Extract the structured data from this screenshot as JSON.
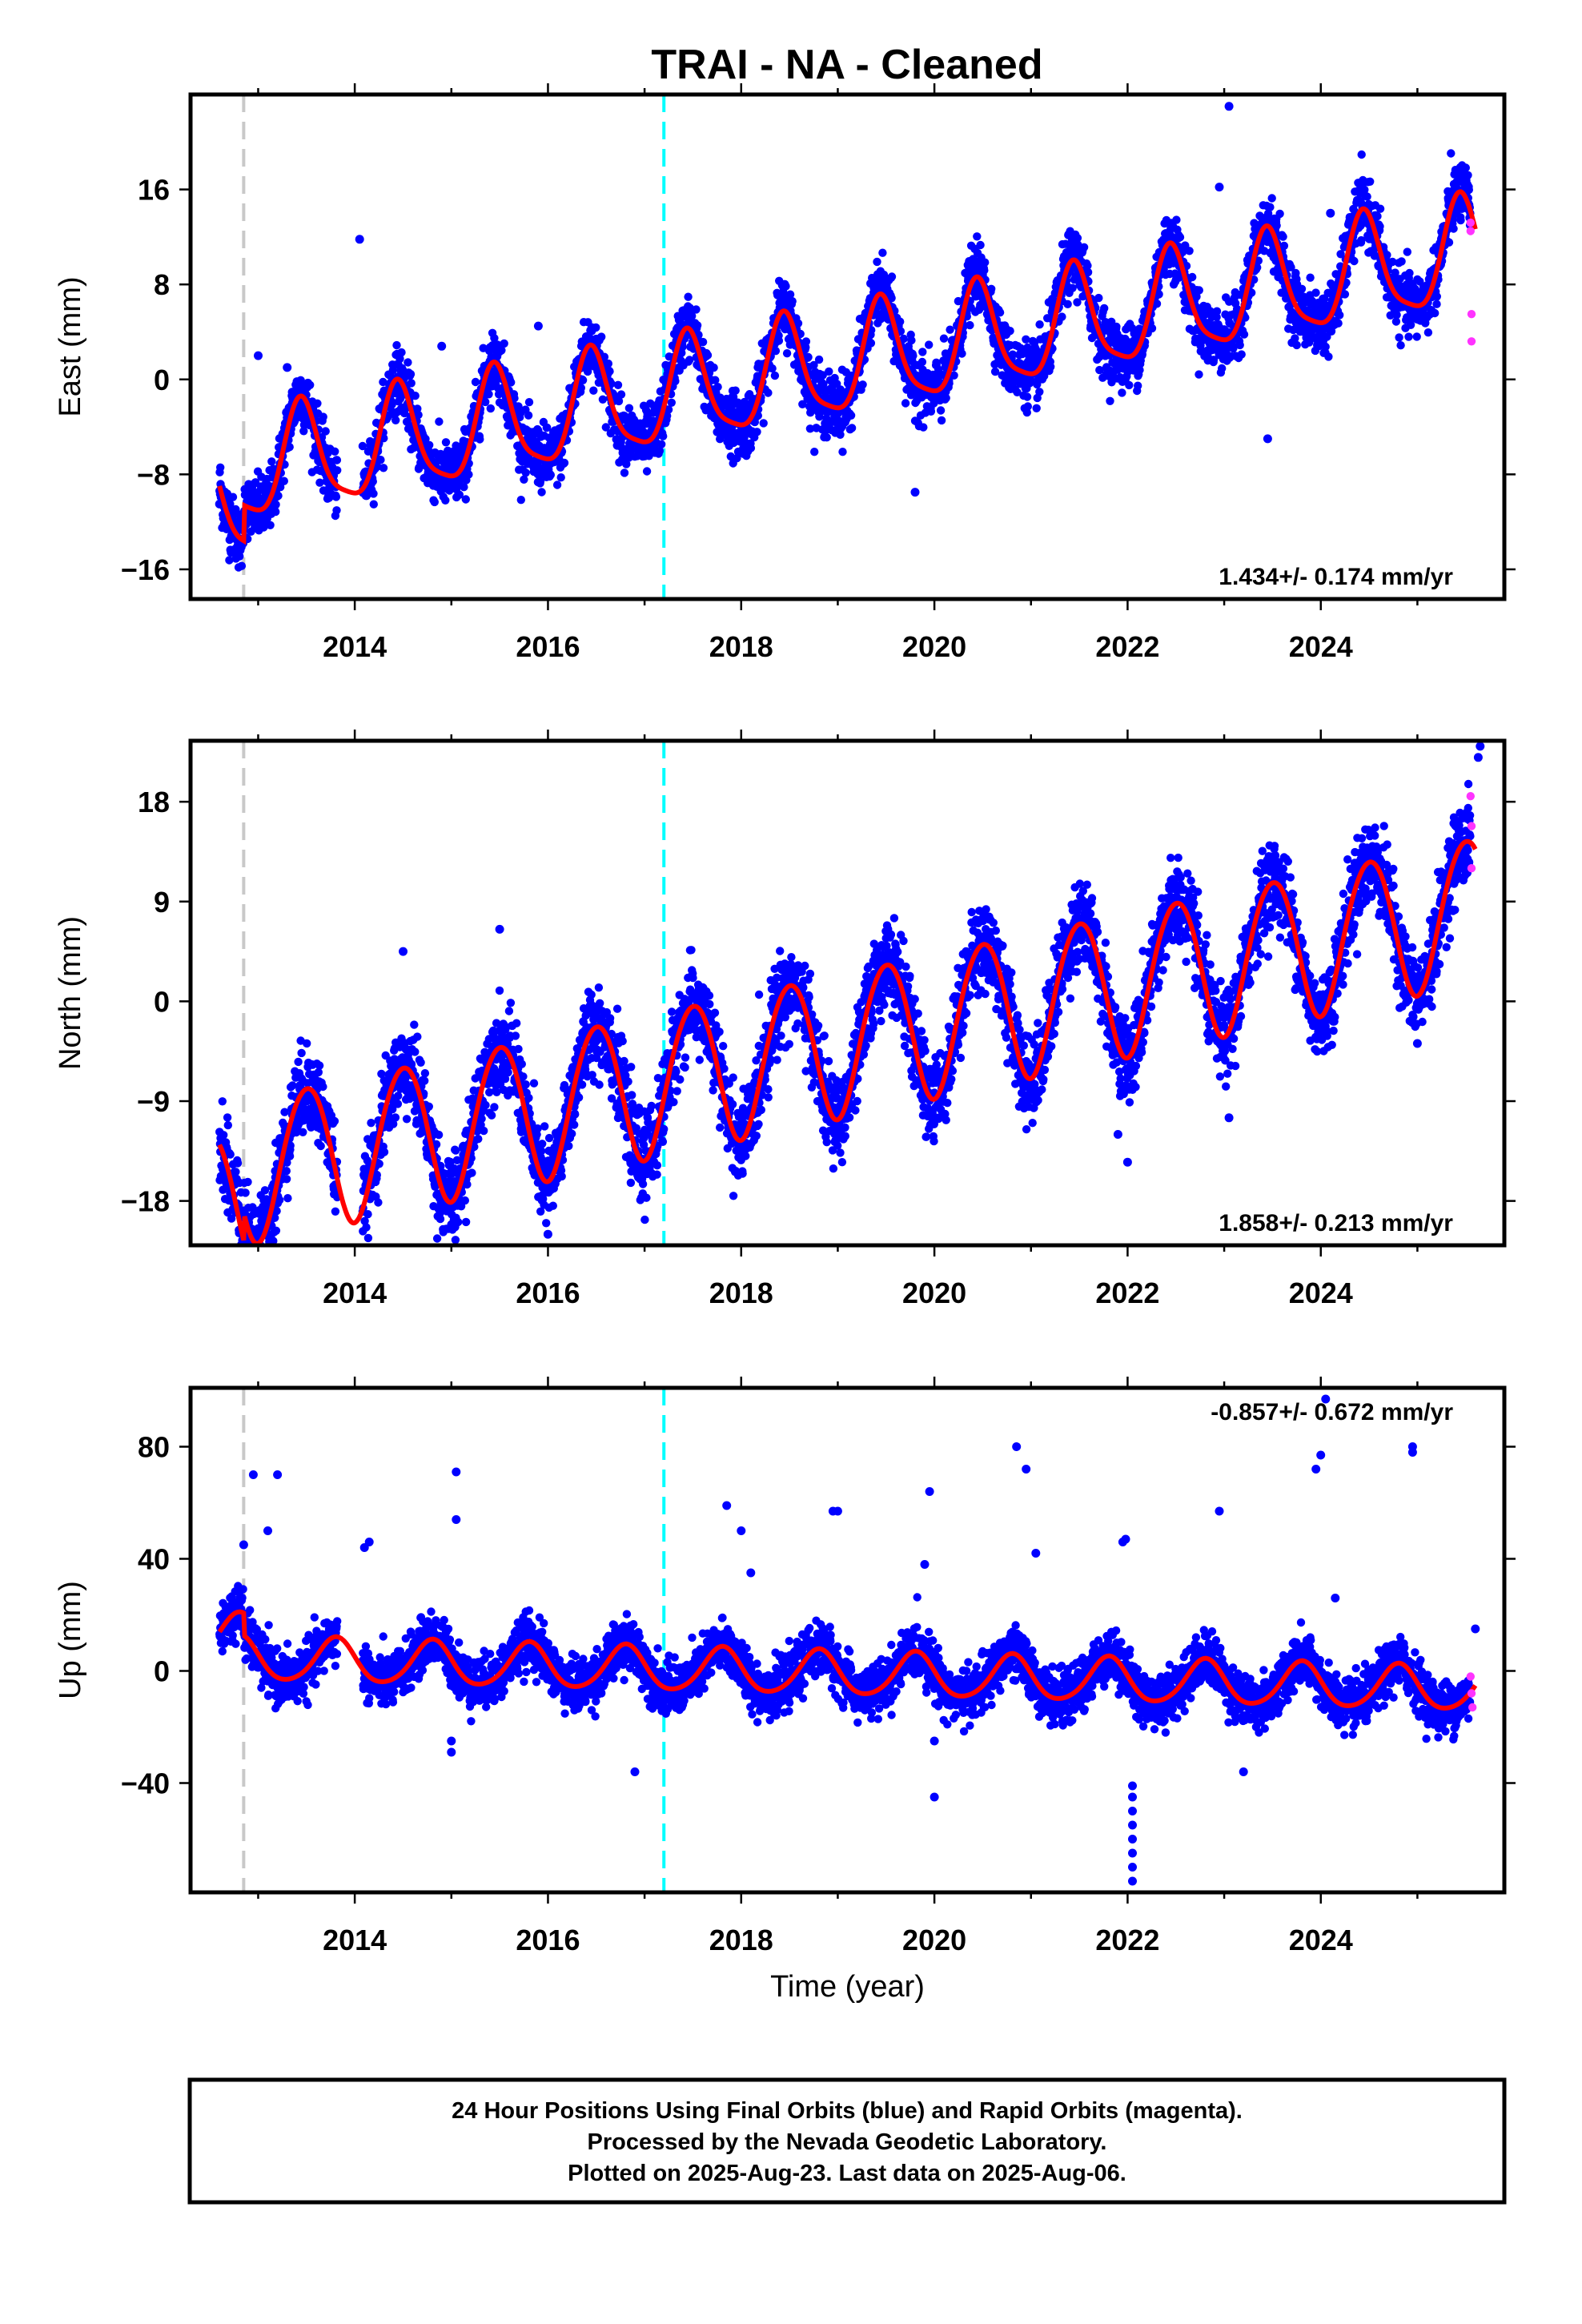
{
  "title": "TRAI  - NA - Cleaned",
  "footer": {
    "line1": "24 Hour Positions Using Final Orbits (blue) and Rapid Orbits (magenta).",
    "line2": "Processed by the Nevada Geodetic Laboratory.",
    "line3": "Plotted on 2025-Aug-23. Last data on 2025-Aug-06."
  },
  "colors": {
    "final_orbits": "#0000ff",
    "rapid_orbits": "#ff33ff",
    "model_fit": "#ff0000",
    "equipment_change": "#c8c8c8",
    "event_line": "#00ffff"
  },
  "chart_data": [
    {
      "type": "scatter",
      "component": "east",
      "ylabel": "East (mm)",
      "xlabel": "",
      "xlim": [
        2012.3,
        2025.9
      ],
      "ylim": [
        -18.5,
        24
      ],
      "yticks": [
        -16,
        -8,
        0,
        8,
        16
      ],
      "xticks": [
        2014,
        2016,
        2018,
        2020,
        2022,
        2024
      ],
      "rate_text": "1.434+/- 0.174 mm/yr",
      "rate_position": "bottom-right",
      "vertical_lines": [
        {
          "x": 2012.85,
          "style": "dashed",
          "color": "#c8c8c8"
        },
        {
          "x": 2017.2,
          "style": "dashed",
          "color": "#00ffff"
        }
      ],
      "model_fit": {
        "start": 2012.6,
        "end": 2025.6,
        "ref_year": 2019,
        "intercept": 1.2,
        "rate": 1.434,
        "annual_amp": 4.4,
        "annual_phase": 0.2,
        "semiannual_amp": 1.0,
        "semiannual_phase": 0.3,
        "initial_offset": -3.0
      },
      "scatter": {
        "noise": 1.3,
        "gaps": [
          [
            2013.82,
            2014.08
          ]
        ]
      },
      "outliers": [
        [
          2014.05,
          11.8
        ],
        [
          2013.0,
          2.0
        ],
        [
          2013.3,
          1.0
        ],
        [
          2022.95,
          16.2
        ],
        [
          2023.05,
          23.0
        ],
        [
          2024.1,
          14.0
        ],
        [
          2019.8,
          -9.5
        ],
        [
          2023.45,
          -5.0
        ],
        [
          2014.9,
          2.8
        ],
        [
          2015.9,
          4.5
        ],
        [
          2012.6,
          -10.5
        ]
      ],
      "rapid_points": [
        [
          2025.55,
          13.2
        ],
        [
          2025.55,
          12.5
        ],
        [
          2025.56,
          5.5
        ],
        [
          2025.56,
          3.2
        ]
      ]
    },
    {
      "type": "scatter",
      "component": "north",
      "ylabel": "North (mm)",
      "xlabel": "",
      "xlim": [
        2012.3,
        2025.9
      ],
      "ylim": [
        -22,
        23.5
      ],
      "yticks": [
        -18,
        -9,
        0,
        9,
        18
      ],
      "xticks": [
        2014,
        2016,
        2018,
        2020,
        2022,
        2024
      ],
      "rate_text": "1.858+/- 0.213 mm/yr",
      "rate_position": "bottom-right",
      "vertical_lines": [
        {
          "x": 2012.85,
          "style": "dashed",
          "color": "#c8c8c8"
        },
        {
          "x": 2017.2,
          "style": "dashed",
          "color": "#00ffff"
        }
      ],
      "model_fit": {
        "start": 2012.6,
        "end": 2025.6,
        "ref_year": 2019,
        "intercept": -3.8,
        "rate": 1.858,
        "annual_amp": 6.5,
        "annual_phase": 0.25,
        "semiannual_amp": 0.4,
        "semiannual_phase": 0.1,
        "initial_offset": -2.5
      },
      "scatter": {
        "noise": 1.9,
        "gaps": [
          [
            2013.82,
            2014.08
          ]
        ]
      },
      "outliers": [
        [
          2022.0,
          -14.5
        ],
        [
          2021.9,
          -12.0
        ],
        [
          2023.05,
          -10.5
        ],
        [
          2025.0,
          -3.8
        ],
        [
          2016.0,
          -21.0
        ],
        [
          2013.0,
          -20.5
        ],
        [
          2015.5,
          6.5
        ],
        [
          2014.5,
          4.5
        ],
        [
          2025.65,
          23.0
        ],
        [
          2025.63,
          22.0
        ]
      ],
      "rapid_points": [
        [
          2025.55,
          18.5
        ],
        [
          2025.56,
          15.8
        ],
        [
          2025.56,
          12.0
        ]
      ]
    },
    {
      "type": "scatter",
      "component": "up",
      "ylabel": "Up (mm)",
      "xlabel": "Time (year)",
      "xlim": [
        2012.3,
        2025.9
      ],
      "ylim": [
        -79,
        101
      ],
      "yticks": [
        -40,
        0,
        40,
        80
      ],
      "xticks": [
        2014,
        2016,
        2018,
        2020,
        2022,
        2024
      ],
      "rate_text": "-0.857+/- 0.672 mm/yr",
      "rate_position": "top-right",
      "vertical_lines": [
        {
          "x": 2012.85,
          "style": "dashed",
          "color": "#c8c8c8"
        },
        {
          "x": 2017.2,
          "style": "dashed",
          "color": "#00ffff"
        }
      ],
      "model_fit": {
        "start": 2012.6,
        "end": 2025.6,
        "ref_year": 2019,
        "intercept": -1.0,
        "rate": -0.857,
        "annual_amp": 7.8,
        "annual_phase": 0.55,
        "semiannual_amp": 1.0,
        "semiannual_phase": 0.2,
        "initial_offset": 8.0
      },
      "scatter": {
        "noise": 4.5,
        "gaps": [
          [
            2013.82,
            2014.08
          ]
        ]
      },
      "outliers": [
        [
          2012.95,
          70
        ],
        [
          2013.1,
          50
        ],
        [
          2013.2,
          70
        ],
        [
          2012.85,
          45
        ],
        [
          2014.1,
          44
        ],
        [
          2014.15,
          46
        ],
        [
          2015.05,
          71
        ],
        [
          2015.05,
          54
        ],
        [
          2015.0,
          -25
        ],
        [
          2015.0,
          -29
        ],
        [
          2016.9,
          -36
        ],
        [
          2017.85,
          59
        ],
        [
          2018.0,
          50
        ],
        [
          2018.1,
          35
        ],
        [
          2018.95,
          57
        ],
        [
          2019.0,
          57
        ],
        [
          2019.95,
          64
        ],
        [
          2019.9,
          38
        ],
        [
          2020.0,
          -45
        ],
        [
          2020.0,
          -25
        ],
        [
          2020.85,
          80
        ],
        [
          2020.95,
          72
        ],
        [
          2021.05,
          42
        ],
        [
          2021.95,
          46
        ],
        [
          2021.98,
          47
        ],
        [
          2022.05,
          -41
        ],
        [
          2022.05,
          -45
        ],
        [
          2022.05,
          -50
        ],
        [
          2022.05,
          -55
        ],
        [
          2022.05,
          -60
        ],
        [
          2022.05,
          -65
        ],
        [
          2022.05,
          -70
        ],
        [
          2022.05,
          -75
        ],
        [
          2022.95,
          57
        ],
        [
          2023.2,
          -36
        ],
        [
          2023.95,
          72
        ],
        [
          2024.0,
          77
        ],
        [
          2024.05,
          97
        ],
        [
          2024.15,
          26
        ],
        [
          2024.95,
          78
        ],
        [
          2024.95,
          80
        ],
        [
          2025.6,
          15
        ]
      ],
      "rapid_points": [
        [
          2025.55,
          -2
        ],
        [
          2025.56,
          -8
        ],
        [
          2025.57,
          -13
        ]
      ]
    }
  ]
}
